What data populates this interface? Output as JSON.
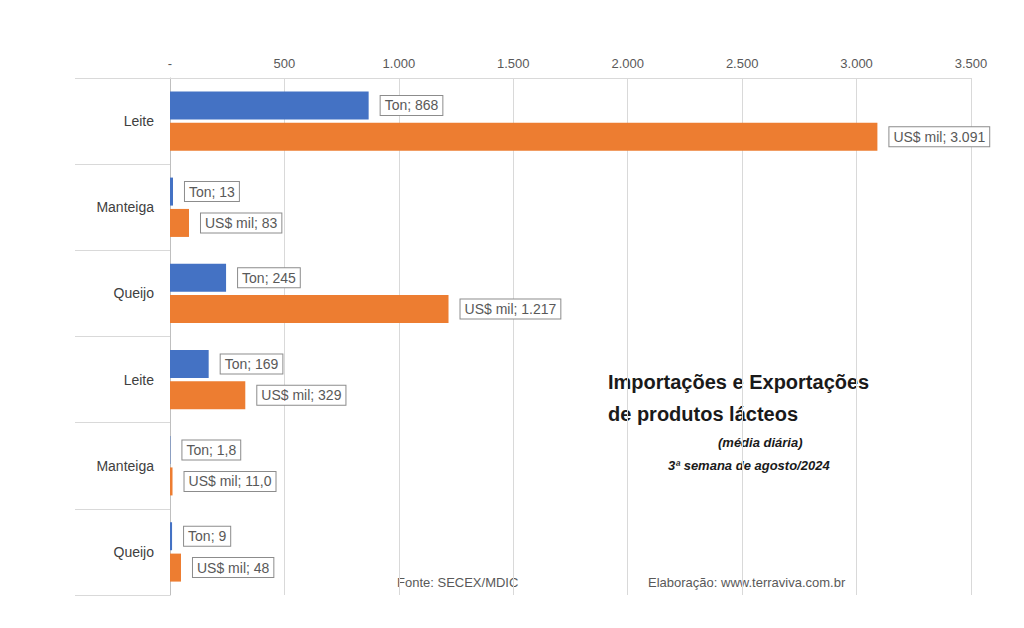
{
  "chart_data": {
    "type": "bar",
    "orientation": "horizontal",
    "title": "Importações e Exportações de produtos lácteos",
    "subtitle": "(média diária)",
    "annotations": [
      "3ª semana de agosto/2024",
      "Fonte: SECEX/MDIC",
      "Elaboração: www.terraviva.com.br"
    ],
    "categories": [
      "Leite",
      "Manteiga",
      "Queijo",
      "Leite",
      "Manteiga",
      "Queijo"
    ],
    "series": [
      {
        "name": "Ton",
        "color": "#4472c4",
        "values": [
          868,
          13,
          245,
          169,
          1.8,
          9
        ],
        "value_labels": [
          "Ton; 868",
          "Ton; 13",
          "Ton; 245",
          "Ton; 169",
          "Ton; 1,8",
          "Ton; 9"
        ]
      },
      {
        "name": "US$ mil",
        "color": "#ed7d31",
        "values": [
          3091,
          83,
          1217,
          329,
          11.0,
          48
        ],
        "value_labels": [
          "US$ mil; 3.091",
          "US$ mil; 83",
          "US$ mil; 1.217",
          "US$ mil; 329",
          "US$ mil; 11,0",
          "US$ mil; 48"
        ]
      }
    ],
    "xlim": [
      0,
      3500
    ],
    "xticks": [
      {
        "value": 0,
        "label": "-"
      },
      500,
      {
        "value": 1000,
        "label": "1.000"
      },
      {
        "value": 1500,
        "label": "1.500"
      },
      {
        "value": 2000,
        "label": "2.000"
      },
      {
        "value": 2500,
        "label": "2.500"
      },
      {
        "value": 3000,
        "label": "3.000"
      },
      {
        "value": 3500,
        "label": "3.500"
      }
    ],
    "grid": true,
    "data_labels": true
  }
}
